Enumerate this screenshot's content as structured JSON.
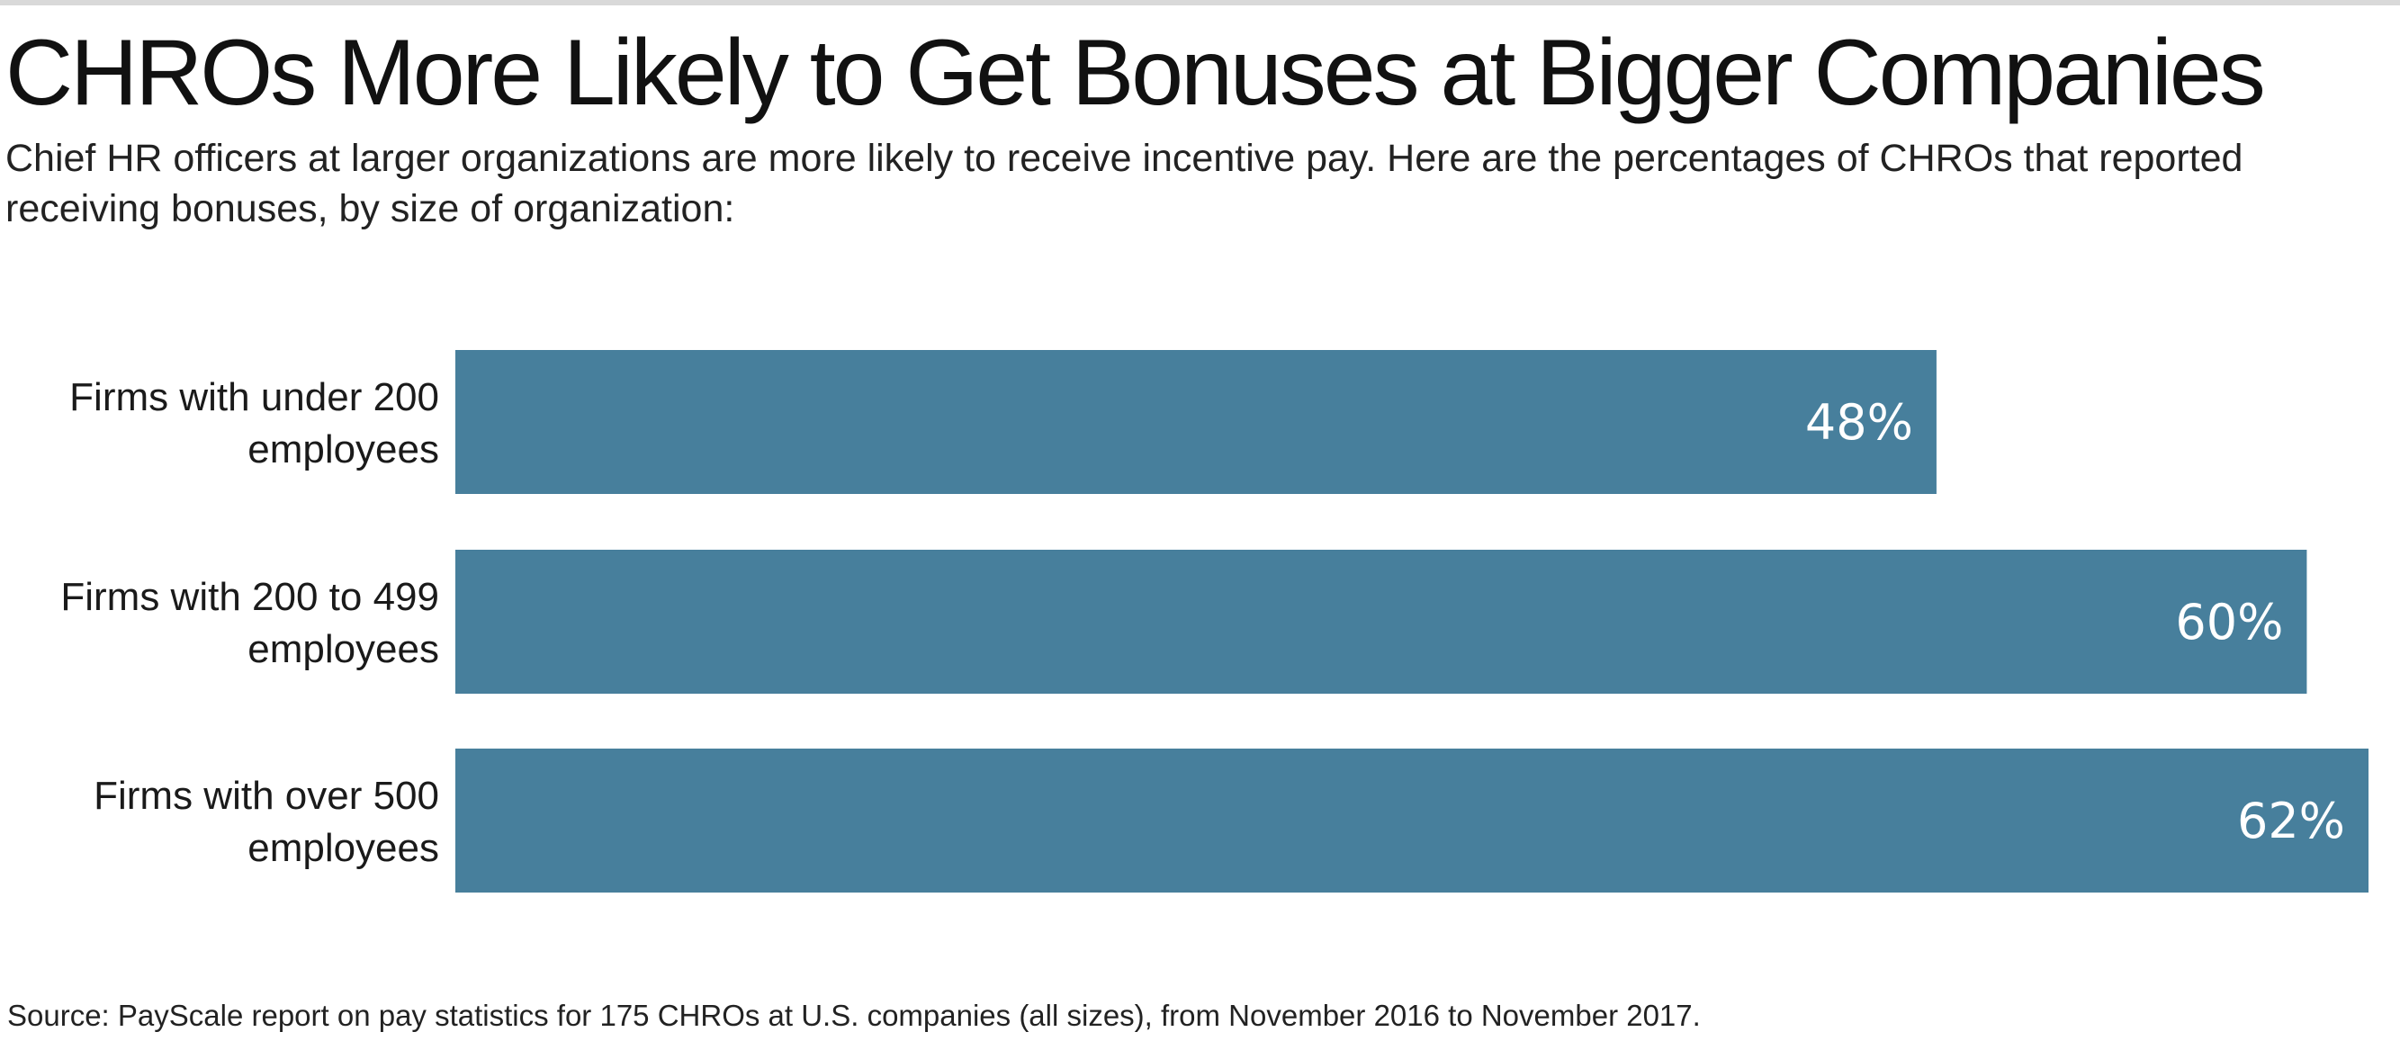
{
  "title": "CHROs More Likely to Get Bonuses at Bigger Companies",
  "subtitle": "Chief HR officers at larger organizations are more likely to receive incentive pay. Here are the percentages of CHROs that reported receiving bonuses, by size of organization:",
  "source": "Source: PayScale report on pay statistics for 175 CHROs at U.S. companies (all sizes), from November 2016 to November 2017.",
  "chart_data": {
    "type": "bar",
    "orientation": "horizontal",
    "categories": [
      [
        "Firms with under 200",
        "employees"
      ],
      [
        "Firms with 200 to 499",
        "employees"
      ],
      [
        "Firms with over 500",
        "employees"
      ]
    ],
    "values": [
      48,
      60,
      62
    ],
    "value_labels": [
      "48%",
      "60%",
      "62%"
    ],
    "xlim": [
      0,
      62
    ],
    "grid": false,
    "bar_color": "#477f9c"
  }
}
